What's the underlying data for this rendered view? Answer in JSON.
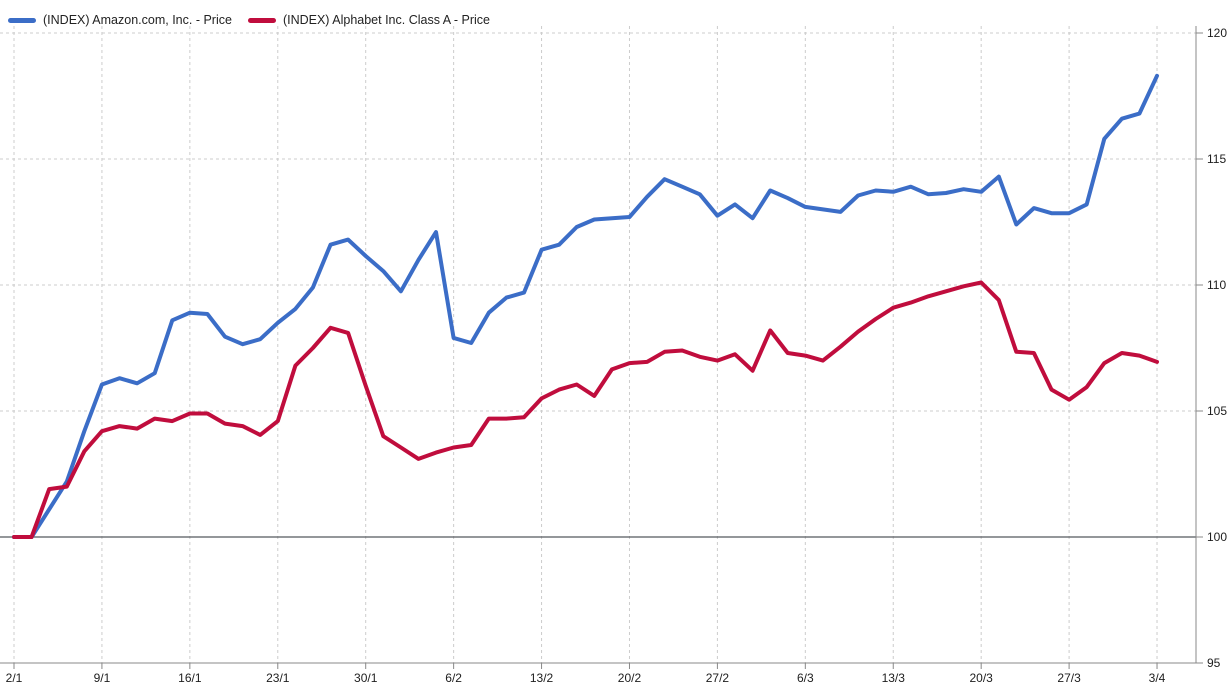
{
  "legend": [
    {
      "label": "(INDEX) Amazon.com, Inc. - Price",
      "color": "#3B6DC7"
    },
    {
      "label": "(INDEX) Alphabet Inc. Class A - Price",
      "color": "#C00D3D"
    }
  ],
  "axis": {
    "y_tick_labels": [
      "95",
      "100",
      "105",
      "110",
      "115",
      "120"
    ],
    "x_tick_labels": [
      "2/1",
      "9/1",
      "16/1",
      "23/1",
      "30/1",
      "6/2",
      "13/2",
      "20/2",
      "27/2",
      "6/3",
      "13/3",
      "20/3",
      "27/3",
      "3/4"
    ]
  },
  "chart_data": {
    "type": "line",
    "title": "",
    "xlabel": "",
    "ylabel": "",
    "ylim": [
      95,
      120
    ],
    "y_ticks": [
      95,
      100,
      105,
      110,
      115,
      120
    ],
    "baseline_value": 100,
    "grid": true,
    "legend_position": "top-left",
    "x_tick_labels": [
      "2/1",
      "9/1",
      "16/1",
      "23/1",
      "30/1",
      "6/2",
      "13/2",
      "20/2",
      "27/2",
      "6/3",
      "13/3",
      "20/3",
      "27/3",
      "3/4"
    ],
    "points_per_tick": 5,
    "series": [
      {
        "name": "(INDEX) Amazon.com, Inc. - Price",
        "color": "#3B6DC7",
        "values": [
          100.0,
          100.0,
          101.1,
          102.2,
          104.2,
          106.05,
          106.3,
          106.1,
          106.5,
          108.6,
          108.9,
          108.85,
          107.95,
          107.65,
          107.85,
          108.5,
          109.05,
          109.9,
          111.6,
          111.8,
          111.15,
          110.55,
          109.75,
          111.0,
          112.1,
          107.9,
          107.7,
          108.9,
          109.5,
          109.7,
          111.4,
          111.6,
          112.3,
          112.6,
          112.65,
          112.7,
          113.5,
          114.2,
          113.9,
          113.6,
          112.75,
          113.2,
          112.65,
          113.75,
          113.45,
          113.1,
          113.0,
          112.9,
          113.55,
          113.75,
          113.7,
          113.9,
          113.6,
          113.65,
          113.8,
          113.7,
          114.3,
          112.4,
          113.05,
          112.85,
          112.85,
          113.2,
          115.8,
          116.6,
          116.8,
          118.3
        ]
      },
      {
        "name": "(INDEX) Alphabet Inc. Class A - Price",
        "color": "#C00D3D",
        "values": [
          100.0,
          100.0,
          101.9,
          102.0,
          103.4,
          104.2,
          104.4,
          104.3,
          104.7,
          104.6,
          104.9,
          104.9,
          104.5,
          104.4,
          104.05,
          104.6,
          106.8,
          107.5,
          108.3,
          108.1,
          106.0,
          104.0,
          103.55,
          103.1,
          103.35,
          103.55,
          103.65,
          104.7,
          104.7,
          104.75,
          105.5,
          105.85,
          106.05,
          105.6,
          106.65,
          106.9,
          106.95,
          107.35,
          107.4,
          107.15,
          107.0,
          107.25,
          106.6,
          108.2,
          107.3,
          107.2,
          107.0,
          107.55,
          108.15,
          108.65,
          109.1,
          109.3,
          109.55,
          109.75,
          109.95,
          110.1,
          109.4,
          107.35,
          107.3,
          105.85,
          105.45,
          105.95,
          106.9,
          107.3,
          107.2,
          106.95
        ]
      }
    ]
  }
}
